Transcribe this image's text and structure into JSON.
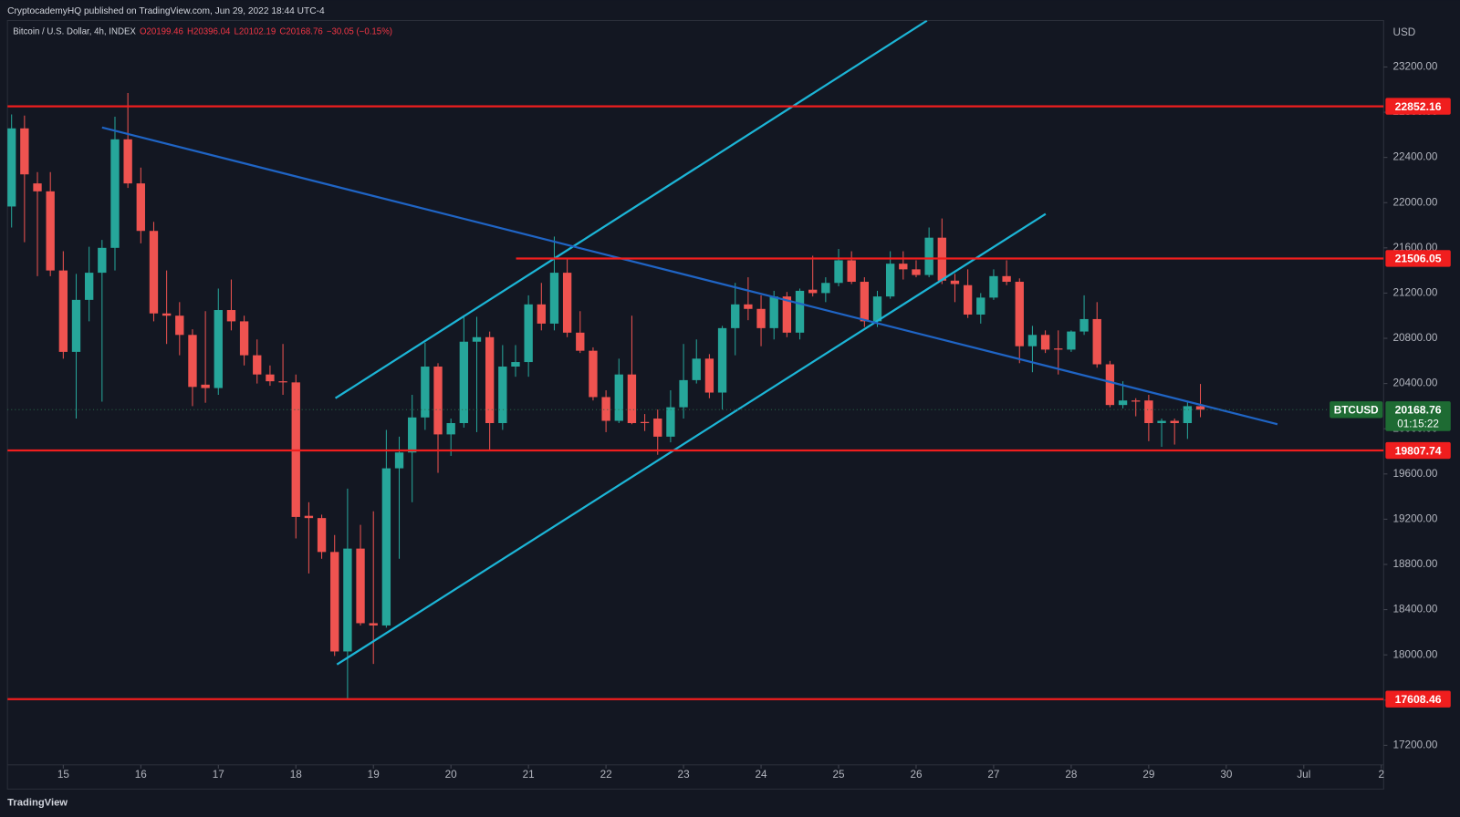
{
  "header": {
    "publisher": "CryptocademyHQ published on TradingView.com, Jun 29, 2022 18:44 UTC-4",
    "symbol": "Bitcoin / U.S. Dollar, 4h, INDEX",
    "ohlc": [
      "O20199.46",
      "H20396.04",
      "L20102.19",
      "C20168.76",
      "−30.05 (−0.15%)"
    ],
    "currency": "USD",
    "logo": "TradingView"
  },
  "chart_data": {
    "type": "candlestick",
    "up_color": "#26a69a",
    "down_color": "#ef5350",
    "x": [
      14.3333,
      14.5,
      14.6667,
      14.8333,
      15,
      15.1667,
      15.3333,
      15.5,
      15.6667,
      15.8333,
      16,
      16.1667,
      16.3333,
      16.5,
      16.6667,
      16.8333,
      17,
      17.1667,
      17.3333,
      17.5,
      17.6667,
      17.8333,
      18,
      18.1667,
      18.3333,
      18.5,
      18.6667,
      18.8333,
      19,
      19.1667,
      19.3333,
      19.5,
      19.6667,
      19.8333,
      20,
      20.1667,
      20.3333,
      20.5,
      20.6667,
      20.8333,
      21,
      21.1667,
      21.3333,
      21.5,
      21.6667,
      21.8333,
      22,
      22.1667,
      22.3333,
      22.5,
      22.6667,
      22.8333,
      23,
      23.1667,
      23.3333,
      23.5,
      23.6667,
      23.8333,
      24,
      24.1667,
      24.3333,
      24.5,
      24.6667,
      24.8333,
      25,
      25.1667,
      25.3333,
      25.5,
      25.6667,
      25.8333,
      26,
      26.1667,
      26.3333,
      26.5,
      26.6667,
      26.8333,
      27,
      27.1667,
      27.3333,
      27.5,
      27.6667,
      27.8333,
      28,
      28.1667,
      28.3333,
      28.5,
      28.6667,
      28.8333,
      29,
      29.1667,
      29.3333,
      29.5,
      29.6667
    ],
    "open": [
      21966,
      22657,
      22170,
      22100,
      21400,
      20680,
      21140,
      21380,
      21600,
      22560,
      22170,
      21750,
      21020,
      21000,
      20830,
      20390,
      20360,
      21050,
      20950,
      20650,
      20480,
      20420,
      20410,
      19230,
      19210,
      18910,
      18030,
      18940,
      18280,
      18260,
      19650,
      19790,
      20100,
      20550,
      19950,
      20050,
      20770,
      20810,
      20050,
      20550,
      20590,
      21100,
      20930,
      21380,
      20850,
      20690,
      20280,
      20070,
      20480,
      20060,
      20090,
      19930,
      20190,
      20430,
      20620,
      20320,
      20890,
      21100,
      21060,
      20890,
      21170,
      20850,
      21230,
      21200,
      21290,
      21490,
      21300,
      20950,
      21170,
      21460,
      21410,
      21360,
      21690,
      21310,
      21270,
      21010,
      21160,
      21350,
      21300,
      20730,
      20830,
      20710,
      20700,
      20860,
      20970,
      20570,
      20210,
      20250,
      20250,
      20050,
      20070,
      20050,
      20199.46
    ],
    "high": [
      22780,
      22770,
      22270,
      22270,
      21570,
      21370,
      21610,
      21670,
      22760,
      22970,
      22310,
      21830,
      21400,
      21120,
      20880,
      21040,
      21240,
      21320,
      21000,
      20790,
      20560,
      20750,
      20480,
      19350,
      19240,
      19060,
      19470,
      19150,
      19270,
      19990,
      19930,
      20300,
      20760,
      20580,
      20090,
      20990,
      20990,
      20860,
      20740,
      20740,
      21180,
      21290,
      21700,
      21500,
      21040,
      20720,
      20340,
      20620,
      21000,
      20130,
      20170,
      20340,
      20750,
      20790,
      20660,
      20910,
      21290,
      21340,
      21180,
      21220,
      21210,
      21240,
      21530,
      21340,
      21590,
      21570,
      21340,
      21220,
      21570,
      21570,
      21490,
      21780,
      21860,
      21370,
      21410,
      21200,
      21410,
      21490,
      21330,
      20910,
      20870,
      20870,
      20870,
      21180,
      21120,
      20600,
      20420,
      20270,
      20300,
      20090,
      20090,
      20240,
      20396.04
    ],
    "low": [
      21780,
      21650,
      21350,
      21350,
      20620,
      20090,
      20950,
      20240,
      21400,
      22130,
      21640,
      20950,
      20750,
      20650,
      20200,
      20230,
      20300,
      20870,
      20560,
      20400,
      20380,
      20300,
      19030,
      18720,
      18850,
      17990,
      17610,
      18260,
      17920,
      18240,
      18850,
      19350,
      19990,
      19610,
      19760,
      20010,
      19970,
      19800,
      19990,
      20460,
      20460,
      20870,
      20870,
      20810,
      20670,
      20250,
      19970,
      20050,
      20040,
      19980,
      19770,
      19880,
      20090,
      20400,
      20270,
      20170,
      20650,
      20960,
      20730,
      20790,
      20810,
      20790,
      21170,
      21120,
      21260,
      21280,
      20900,
      20900,
      21150,
      21320,
      21340,
      21340,
      21280,
      21120,
      20980,
      20930,
      21140,
      21270,
      20580,
      20500,
      20670,
      20480,
      20680,
      20830,
      20540,
      20190,
      20180,
      20110,
      19890,
      19840,
      19860,
      19910,
      20102.19
    ],
    "close": [
      22657,
      22250,
      22100,
      21400,
      20680,
      21140,
      21380,
      21600,
      22560,
      22170,
      21750,
      21020,
      21000,
      20830,
      20370,
      20360,
      21050,
      20950,
      20650,
      20480,
      20420,
      20410,
      19220,
      19210,
      18910,
      18030,
      18940,
      18280,
      18260,
      19650,
      19790,
      20100,
      20550,
      19950,
      20050,
      20770,
      20810,
      20050,
      20550,
      20590,
      21100,
      20930,
      21380,
      20850,
      20690,
      20280,
      20070,
      20480,
      20050,
      20050,
      19930,
      20190,
      20430,
      20620,
      20320,
      20890,
      21100,
      21060,
      20890,
      21170,
      20850,
      21220,
      21200,
      21290,
      21490,
      21300,
      20950,
      21170,
      21460,
      21410,
      21360,
      21690,
      21310,
      21280,
      21010,
      21160,
      21350,
      21300,
      20730,
      20830,
      20700,
      20700,
      20860,
      20970,
      20570,
      20210,
      20250,
      20240,
      20050,
      20070,
      20050,
      20200,
      20168.76
    ],
    "xlim": [
      14.28,
      32.03
    ],
    "xticks": [
      15,
      16,
      17,
      18,
      19,
      20,
      21,
      22,
      23,
      24,
      25,
      26,
      27,
      28,
      29,
      30,
      {
        "value": 31,
        "label": "Jul"
      },
      {
        "value": 32,
        "label": "2"
      }
    ],
    "ylim": [
      17027,
      23611
    ],
    "yticks": [
      {
        "value": 17200,
        "label": "17200.00"
      },
      {
        "value": 17600,
        "label": "17600.00"
      },
      {
        "value": 18000,
        "label": "18000.00"
      },
      {
        "value": 18400,
        "label": "18400.00"
      },
      {
        "value": 18800,
        "label": "18800.00"
      },
      {
        "value": 19200,
        "label": "19200.00"
      },
      {
        "value": 19600,
        "label": "19600.00"
      },
      {
        "value": 20000,
        "label": "20000.00"
      },
      {
        "value": 20400,
        "label": "20400.00"
      },
      {
        "value": 20800,
        "label": "20800.00"
      },
      {
        "value": 21200,
        "label": "21200.00"
      },
      {
        "value": 21600,
        "label": "21600.00"
      },
      {
        "value": 22000,
        "label": "22000.00"
      },
      {
        "value": 22400,
        "label": "22400.00"
      },
      {
        "value": 22800,
        "label": "22800.00"
      },
      {
        "value": 23200,
        "label": "23200.00"
      }
    ],
    "level_color": "#f01e1e",
    "levels": [
      {
        "value": 22852.16
      },
      {
        "value": 21506.05,
        "from": 20.84
      },
      {
        "value": 19807.74
      },
      {
        "value": 17608.46
      }
    ],
    "trendlines": [
      {
        "color": "#1cb5d6",
        "x": [
          18.51,
          26.14
        ],
        "y": [
          20270,
          23610
        ]
      },
      {
        "color": "#1cb5d6",
        "x": [
          18.53,
          27.67
        ],
        "y": [
          17915,
          21900
        ]
      },
      {
        "color": "#1f64c4",
        "x": [
          15.5,
          30.66
        ],
        "y": [
          22665,
          20040
        ]
      }
    ],
    "last": {
      "symbol": "BTCUSD",
      "price": 20168.76,
      "countdown": "01:15:22",
      "color": "#1e6b33"
    }
  }
}
